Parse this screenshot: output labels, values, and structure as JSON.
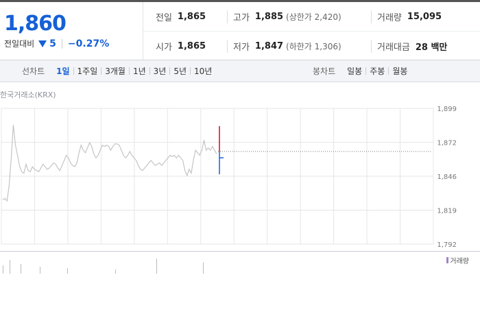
{
  "summary": {
    "current_price": "1,860",
    "change_label": "전일대비",
    "change_value": "5",
    "change_pct": "−0.27%",
    "prev_close": {
      "label": "전일",
      "value": "1,865"
    },
    "high": {
      "label": "고가",
      "value": "1,885",
      "sub": "(상한가 2,420)"
    },
    "volume": {
      "label": "거래량",
      "value": "15,095"
    },
    "open": {
      "label": "시가",
      "value": "1,865"
    },
    "low": {
      "label": "저가",
      "value": "1,847",
      "sub": "(하한가 1,306)"
    },
    "trade_value": {
      "label": "거래대금",
      "value": "28 백만"
    }
  },
  "toolbar": {
    "line_chart_label": "선차트",
    "periods": [
      "1일",
      "1주일",
      "3개월",
      "1년",
      "3년",
      "5년",
      "10년"
    ],
    "active_period": "1일",
    "candle_chart_label": "봉차트",
    "candle_periods": [
      "일봉",
      "주봉",
      "월봉"
    ]
  },
  "chart": {
    "exchange": "한국거래소(KRX)",
    "volume_legend": "거래량",
    "colors": {
      "up": "#e0001b",
      "down": "#1560d6",
      "line": "#c4c4c4",
      "grid": "#e6e6e6"
    }
  },
  "chart_data": {
    "type": "line",
    "y_ticks": [
      "1,899",
      "1,872",
      "1,846",
      "1,819",
      "1,792"
    ],
    "ylim": [
      1792,
      1899
    ],
    "prev_close": 1865,
    "series": [
      {
        "values": [
          1827,
          1828,
          1826,
          1838,
          1860,
          1886,
          1870,
          1862,
          1853,
          1849,
          1848,
          1855,
          1850,
          1849,
          1853,
          1851,
          1850,
          1849,
          1852,
          1855,
          1853,
          1851,
          1852,
          1854,
          1856,
          1855,
          1852,
          1850,
          1854,
          1858,
          1862,
          1860,
          1856,
          1854,
          1853,
          1856,
          1864,
          1870,
          1866,
          1864,
          1868,
          1872,
          1869,
          1863,
          1860,
          1862,
          1866,
          1870,
          1869,
          1870,
          1869,
          1866,
          1869,
          1871,
          1871,
          1870,
          1866,
          1862,
          1860,
          1862,
          1865,
          1862,
          1860,
          1858,
          1854,
          1851,
          1850,
          1852,
          1854,
          1856,
          1858,
          1856,
          1854,
          1855,
          1856,
          1854,
          1856,
          1858,
          1860,
          1862,
          1861,
          1862,
          1860,
          1862,
          1860,
          1858,
          1850,
          1846,
          1851,
          1848,
          1858,
          1866,
          1864,
          1862,
          1866,
          1874,
          1866,
          1868,
          1866,
          1869,
          1866,
          1863
        ]
      }
    ],
    "candle": {
      "open": 1865,
      "high": 1885,
      "low": 1847,
      "close": 1860
    }
  }
}
